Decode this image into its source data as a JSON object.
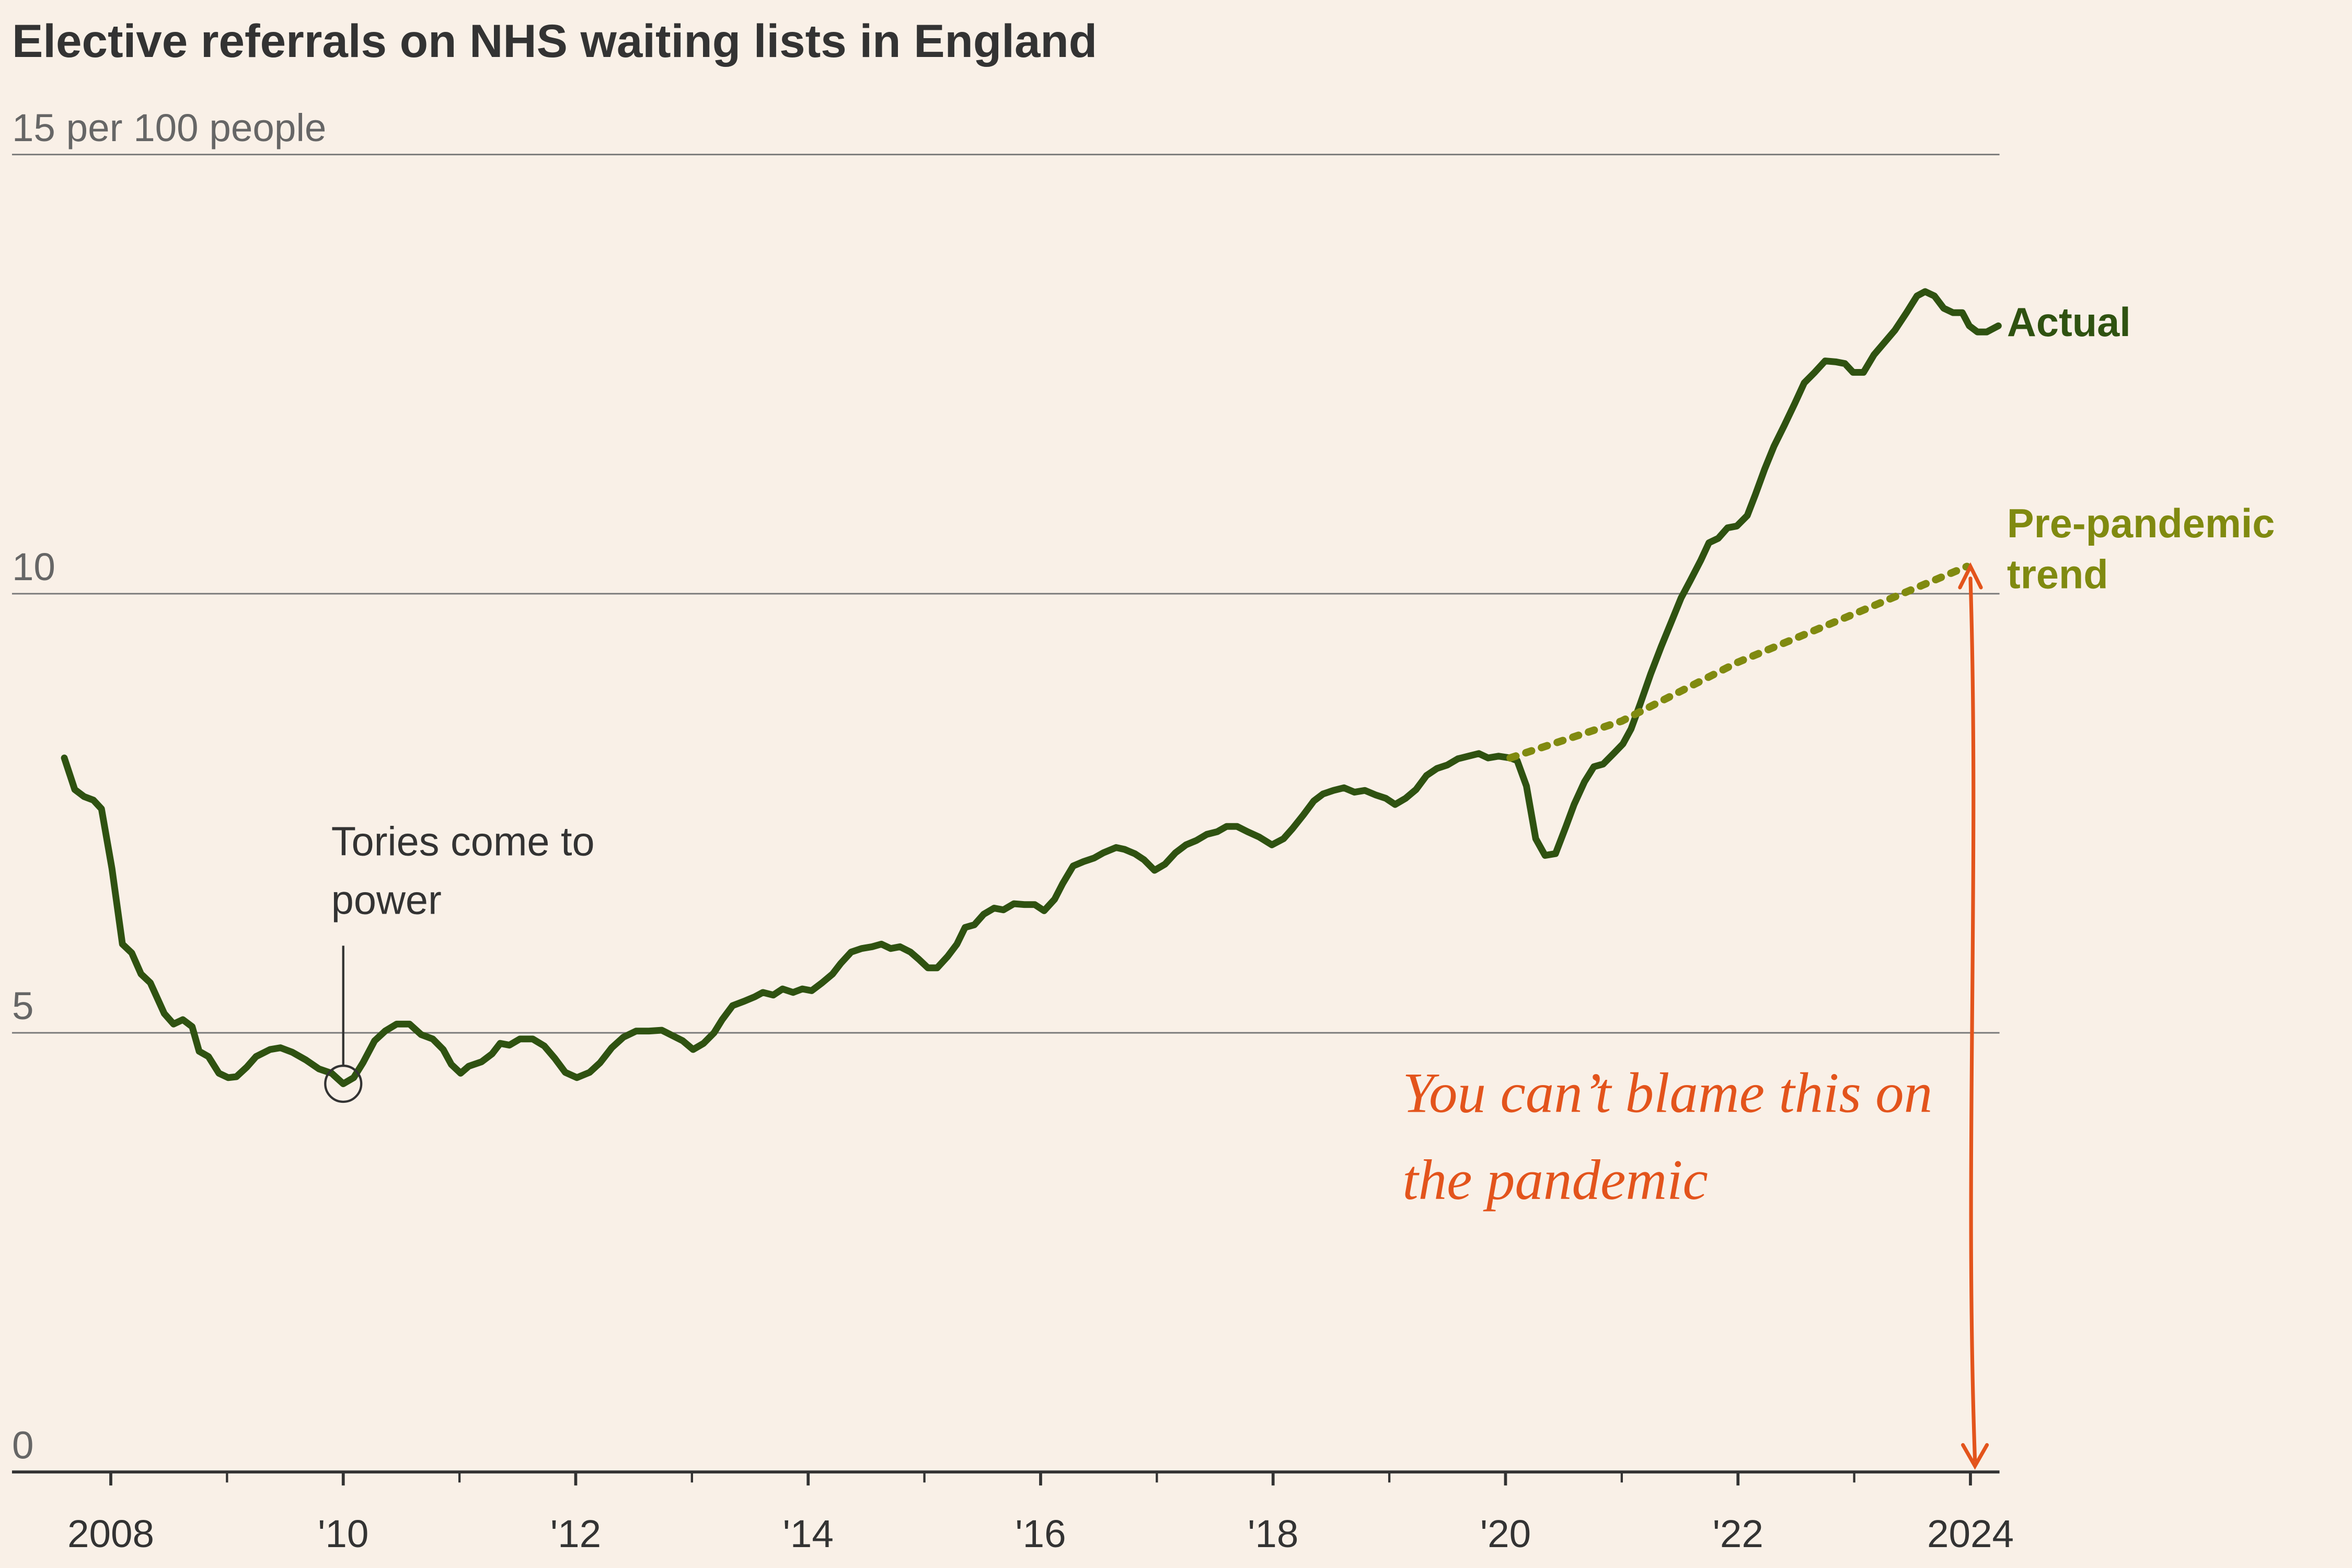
{
  "chart_data": {
    "type": "line",
    "title": "Elective referrals on NHS waiting lists in England",
    "xlim": [
      2007.15,
      2024.25
    ],
    "ylim": [
      0,
      15
    ],
    "yticks": [
      0,
      5,
      10,
      {
        "value": 15,
        "label": "15 per 100 people"
      }
    ],
    "xticks": [
      2008,
      {
        "value": 2010,
        "label": "'10"
      },
      {
        "value": 2012,
        "label": "'12"
      },
      {
        "value": 2014,
        "label": "'14"
      },
      {
        "value": 2016,
        "label": "'16"
      },
      {
        "value": 2018,
        "label": "'18"
      },
      {
        "value": 2020,
        "label": "'20"
      },
      {
        "value": 2022,
        "label": "'22"
      },
      2024
    ],
    "xminor_ticks": [
      2009,
      2011,
      2013,
      2015,
      2017,
      2019,
      2021,
      2023
    ],
    "grid": true,
    "series": [
      {
        "name": "Actual",
        "color": "#2f5211",
        "style": "solid",
        "x": [
          2007.6,
          2007.69,
          2007.77,
          2007.85,
          2007.92,
          2008.01,
          2008.1,
          2008.18,
          2008.26,
          2008.34,
          2008.46,
          2008.54,
          2008.62,
          2008.7,
          2008.76,
          2008.84,
          2008.93,
          2009.01,
          2009.08,
          2009.17,
          2009.25,
          2009.37,
          2009.46,
          2009.56,
          2009.68,
          2009.79,
          2009.9,
          2010.0,
          2010.09,
          2010.17,
          2010.27,
          2010.36,
          2010.46,
          2010.57,
          2010.67,
          2010.77,
          2010.86,
          2010.93,
          2011.01,
          2011.08,
          2011.19,
          2011.28,
          2011.35,
          2011.43,
          2011.52,
          2011.63,
          2011.73,
          2011.82,
          2011.91,
          2012.01,
          2012.12,
          2012.21,
          2012.31,
          2012.41,
          2012.52,
          2012.63,
          2012.74,
          2012.83,
          2012.92,
          2013.01,
          2013.1,
          2013.19,
          2013.26,
          2013.35,
          2013.45,
          2013.54,
          2013.61,
          2013.7,
          2013.78,
          2013.87,
          2013.95,
          2014.03,
          2014.12,
          2014.21,
          2014.28,
          2014.37,
          2014.46,
          2014.55,
          2014.63,
          2014.71,
          2014.79,
          2014.88,
          2014.95,
          2015.03,
          2015.11,
          2015.2,
          2015.28,
          2015.35,
          2015.43,
          2015.51,
          2015.6,
          2015.68,
          2015.77,
          2015.86,
          2015.95,
          2016.03,
          2016.12,
          2016.19,
          2016.28,
          2016.37,
          2016.46,
          2016.54,
          2016.65,
          2016.72,
          2016.81,
          2016.89,
          2016.98,
          2017.07,
          2017.16,
          2017.25,
          2017.34,
          2017.43,
          2017.52,
          2017.6,
          2017.69,
          2017.78,
          2017.88,
          2017.99,
          2018.09,
          2018.17,
          2018.26,
          2018.35,
          2018.43,
          2018.52,
          2018.61,
          2018.7,
          2018.79,
          2018.88,
          2018.97,
          2019.05,
          2019.14,
          2019.23,
          2019.32,
          2019.41,
          2019.5,
          2019.59,
          2019.68,
          2019.77,
          2019.85,
          2019.94,
          2020.04,
          2020.1,
          2020.18,
          2020.26,
          2020.34,
          2020.43,
          2020.52,
          2020.59,
          2020.68,
          2020.76,
          2020.84,
          2020.93,
          2021.01,
          2021.08,
          2021.16,
          2021.25,
          2021.34,
          2021.43,
          2021.51,
          2021.59,
          2021.68,
          2021.75,
          2021.83,
          2021.91,
          2021.99,
          2022.08,
          2022.15,
          2022.23,
          2022.31,
          2022.4,
          2022.49,
          2022.57,
          2022.66,
          2022.75,
          2022.84,
          2022.92,
          2022.99,
          2023.08,
          2023.17,
          2023.26,
          2023.35,
          2023.45,
          2023.54,
          2023.61,
          2023.69,
          2023.77,
          2023.85,
          2023.93,
          2023.99,
          2024.06,
          2024.14,
          2024.24
        ],
        "values": [
          8.13,
          7.77,
          7.69,
          7.65,
          7.55,
          6.87,
          6.01,
          5.91,
          5.67,
          5.57,
          5.22,
          5.1,
          5.15,
          5.07,
          4.79,
          4.73,
          4.54,
          4.49,
          4.5,
          4.61,
          4.73,
          4.81,
          4.83,
          4.78,
          4.69,
          4.59,
          4.54,
          4.42,
          4.49,
          4.66,
          4.91,
          5.02,
          5.1,
          5.1,
          4.98,
          4.93,
          4.81,
          4.64,
          4.54,
          4.62,
          4.67,
          4.76,
          4.88,
          4.86,
          4.93,
          4.93,
          4.85,
          4.71,
          4.55,
          4.49,
          4.55,
          4.66,
          4.83,
          4.95,
          5.02,
          5.02,
          5.03,
          4.97,
          4.91,
          4.81,
          4.88,
          5.0,
          5.15,
          5.31,
          5.36,
          5.41,
          5.46,
          5.43,
          5.5,
          5.46,
          5.5,
          5.48,
          5.57,
          5.67,
          5.79,
          5.92,
          5.96,
          5.98,
          6.01,
          5.96,
          5.98,
          5.92,
          5.84,
          5.74,
          5.74,
          5.87,
          6.01,
          6.2,
          6.23,
          6.35,
          6.42,
          6.4,
          6.47,
          6.46,
          6.46,
          6.39,
          6.52,
          6.7,
          6.9,
          6.95,
          6.99,
          7.05,
          7.11,
          7.09,
          7.04,
          6.97,
          6.85,
          6.92,
          7.05,
          7.14,
          7.19,
          7.26,
          7.29,
          7.35,
          7.35,
          7.29,
          7.23,
          7.14,
          7.21,
          7.33,
          7.48,
          7.64,
          7.72,
          7.76,
          7.79,
          7.74,
          7.76,
          7.71,
          7.67,
          7.6,
          7.67,
          7.77,
          7.93,
          8.01,
          8.05,
          8.12,
          8.15,
          8.18,
          8.13,
          8.15,
          8.13,
          8.1,
          7.81,
          7.21,
          7.02,
          7.04,
          7.35,
          7.6,
          7.86,
          8.03,
          8.06,
          8.18,
          8.29,
          8.46,
          8.75,
          9.09,
          9.4,
          9.69,
          9.95,
          10.15,
          10.38,
          10.58,
          10.63,
          10.75,
          10.77,
          10.89,
          11.13,
          11.42,
          11.68,
          11.92,
          12.17,
          12.4,
          12.52,
          12.65,
          12.64,
          12.62,
          12.52,
          12.52,
          12.72,
          12.86,
          13.0,
          13.2,
          13.39,
          13.44,
          13.39,
          13.25,
          13.2,
          13.2,
          13.05,
          12.98,
          12.98,
          13.05
        ]
      },
      {
        "name": "Pre-pandemic trend",
        "color": "#808a10",
        "style": "dotted",
        "x": [
          2020.04,
          2021.0,
          2022.0,
          2023.0,
          2023.97
        ],
        "values": [
          8.13,
          8.55,
          9.22,
          9.77,
          10.31
        ]
      }
    ],
    "annotations": [
      {
        "text": "Tories come to power",
        "x": 2010.0,
        "y": 4.42
      },
      {
        "text": "You can’t blame this on the pandemic",
        "x": 2024.0,
        "y": 10.31
      }
    ]
  }
}
